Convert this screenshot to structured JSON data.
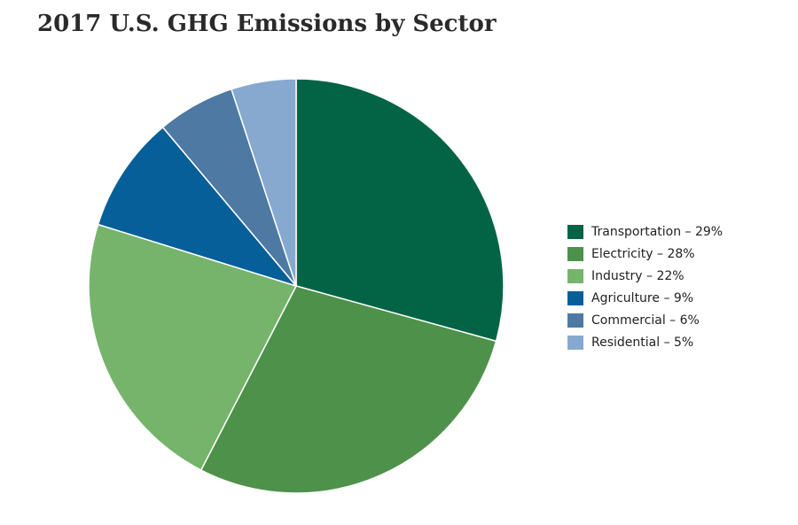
{
  "chart_data": {
    "type": "pie",
    "title": "2017 U.S. GHG Emissions by Sector",
    "slices": [
      {
        "label": "Transportation",
        "value": 29,
        "display": "Transportation – 29%",
        "color": "#036445"
      },
      {
        "label": "Electricity",
        "value": 28,
        "display": "Electricity – 28%",
        "color": "#4e914a"
      },
      {
        "label": "Industry",
        "value": 22,
        "display": "Industry – 22%",
        "color": "#76b46c"
      },
      {
        "label": "Agriculture",
        "value": 9,
        "display": "Agriculture – 9%",
        "color": "#065f99"
      },
      {
        "label": "Commercial",
        "value": 6,
        "display": "Commercial – 6%",
        "color": "#4e79a3"
      },
      {
        "label": "Residential",
        "value": 5,
        "display": "Residential – 5%",
        "color": "#87a9d0"
      }
    ],
    "legend_position": "right"
  }
}
